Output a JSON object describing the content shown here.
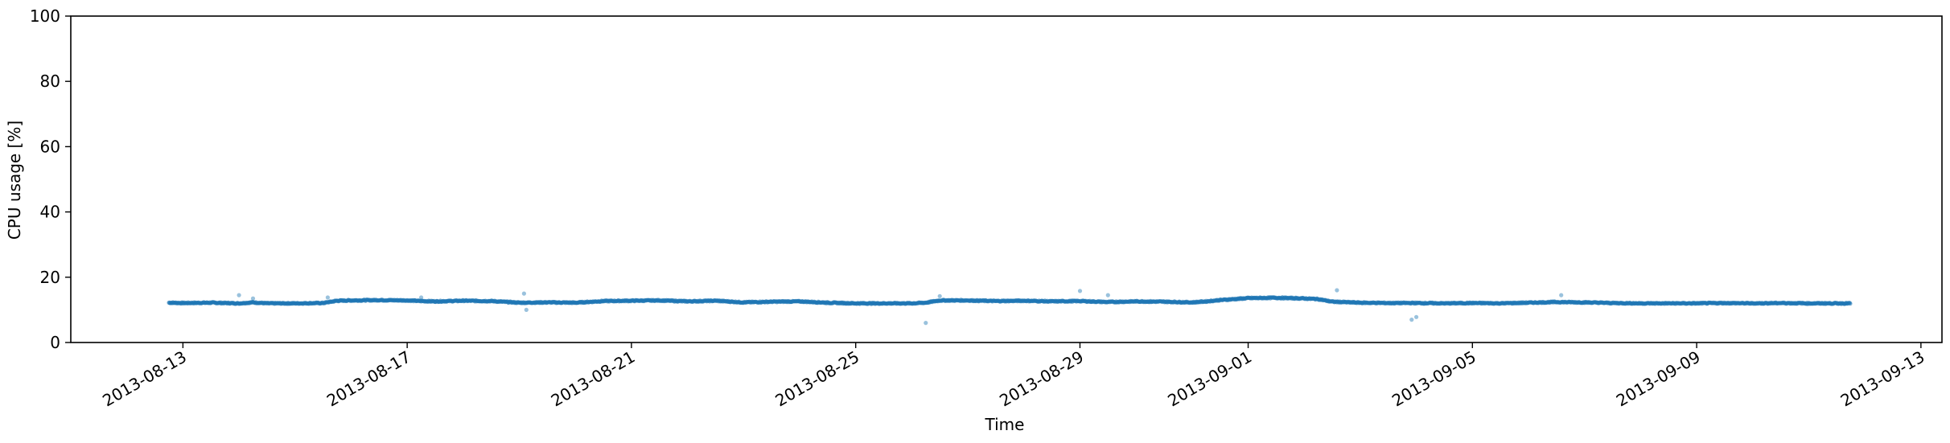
{
  "chart_data": {
    "type": "scatter",
    "title": "",
    "xlabel": "Time",
    "ylabel": "CPU usage [%]",
    "ylim": [
      0,
      100
    ],
    "xlim": [
      "2013-08-11",
      "2013-09-13T09:00"
    ],
    "y_ticks": [
      "0",
      "20",
      "40",
      "60",
      "80",
      "100"
    ],
    "x_ticks": [
      "2013-08-13",
      "2013-08-17",
      "2013-08-21",
      "2013-08-25",
      "2013-08-29",
      "2013-09-01",
      "2013-09-05",
      "2013-09-09",
      "2013-09-13"
    ],
    "grid": false,
    "legend": "none",
    "marker_color": "#1f77b4",
    "series": [
      {
        "x": [
          "2013-08-12T18:00",
          "2013-08-13",
          "2013-08-13T12:00",
          "2013-08-14",
          "2013-08-14T06:00",
          "2013-08-14T12:00",
          "2013-08-15",
          "2013-08-15T12:00",
          "2013-08-15T18:00",
          "2013-08-16",
          "2013-08-16T12:00",
          "2013-08-17",
          "2013-08-17T06:00",
          "2013-08-17T12:00",
          "2013-08-18",
          "2013-08-18T12:00",
          "2013-08-19",
          "2013-08-19T12:00",
          "2013-08-20",
          "2013-08-20T12:00",
          "2013-08-21",
          "2013-08-21T12:00",
          "2013-08-22",
          "2013-08-22T12:00",
          "2013-08-23",
          "2013-08-23T12:00",
          "2013-08-24",
          "2013-08-24T12:00",
          "2013-08-25",
          "2013-08-25T12:00",
          "2013-08-26",
          "2013-08-26T06:00",
          "2013-08-26T12:00",
          "2013-08-27",
          "2013-08-27T12:00",
          "2013-08-28",
          "2013-08-28T12:00",
          "2013-08-29",
          "2013-08-29T12:00",
          "2013-08-30",
          "2013-08-30T12:00",
          "2013-08-31",
          "2013-08-31T06:00",
          "2013-08-31T12:00",
          "2013-09-01",
          "2013-09-01T12:00",
          "2013-09-02",
          "2013-09-02T06:00",
          "2013-09-02T12:00",
          "2013-09-03",
          "2013-09-03T12:00",
          "2013-09-04",
          "2013-09-04T12:00",
          "2013-09-05",
          "2013-09-05T12:00",
          "2013-09-06",
          "2013-09-06T12:00",
          "2013-09-07",
          "2013-09-07T12:00",
          "2013-09-08",
          "2013-09-08T12:00",
          "2013-09-09",
          "2013-09-09T12:00",
          "2013-09-10",
          "2013-09-10T12:00",
          "2013-09-11",
          "2013-09-11T12:00",
          "2013-09-11T18:00"
        ],
        "y": [
          12.2,
          12.1,
          12.2,
          12.0,
          12.3,
          12.0,
          12.0,
          12.1,
          12.8,
          12.9,
          13.0,
          12.9,
          12.7,
          12.6,
          12.8,
          12.7,
          12.2,
          12.3,
          12.2,
          12.7,
          12.8,
          12.9,
          12.6,
          12.8,
          12.3,
          12.5,
          12.6,
          12.2,
          12.0,
          12.0,
          12.0,
          12.2,
          12.9,
          12.9,
          12.7,
          12.8,
          12.6,
          12.7,
          12.4,
          12.6,
          12.5,
          12.3,
          12.6,
          13.0,
          13.6,
          13.7,
          13.5,
          13.3,
          12.5,
          12.2,
          12.1,
          12.1,
          12.0,
          12.1,
          12.0,
          12.2,
          12.4,
          12.3,
          12.1,
          12.0,
          12.0,
          12.0,
          12.1,
          12.0,
          12.1,
          12.0,
          12.0,
          12.0
        ]
      },
      {
        "x": [
          "2013-08-14",
          "2013-08-14T06:00",
          "2013-08-15T14:00",
          "2013-08-17T06:00",
          "2013-08-19T02:00",
          "2013-08-19T03:00",
          "2013-08-26T06:00",
          "2013-08-26T12:00",
          "2013-08-29",
          "2013-08-29T12:00",
          "2013-09-02T14:00",
          "2013-09-03T22:00",
          "2013-09-04",
          "2013-09-06T14:00"
        ],
        "y": [
          14.5,
          13.5,
          13.8,
          13.8,
          15.0,
          10.0,
          6.0,
          14.2,
          15.8,
          14.5,
          16.0,
          7.0,
          7.8,
          14.5
        ]
      }
    ]
  }
}
